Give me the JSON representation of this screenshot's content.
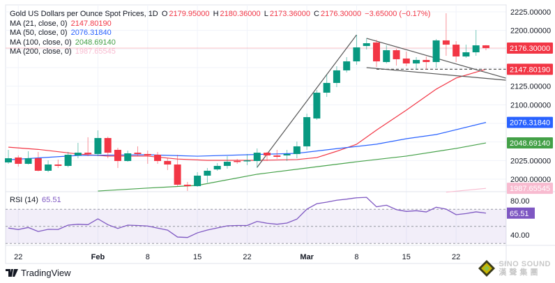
{
  "header": {
    "symbol": "Gold US Dollars per Ounce Spot Prices, 1D",
    "o_label": "O",
    "o": "2179.95000",
    "h_label": "H",
    "h": "2180.36000",
    "l_label": "L",
    "l": "2173.36000",
    "c_label": "C",
    "c": "2176.30000",
    "change": "−3.65000 (−0.17%)"
  },
  "indicators": [
    {
      "label": "MA (21, close, 0)",
      "value": "2147.80190",
      "color": "#f23645"
    },
    {
      "label": "MA (50, close, 0)",
      "value": "2076.31840",
      "color": "#2962ff"
    },
    {
      "label": "MA (100, close, 0)",
      "value": "2048.69140",
      "color": "#43a047"
    },
    {
      "label": "MA (200, close, 0)",
      "value": "1987.65545",
      "color": "#f8bbd0"
    }
  ],
  "rsi": {
    "label": "RSI (14)",
    "value": "65.51",
    "color": "#7e57c2"
  },
  "colors": {
    "up": "#089981",
    "down": "#f23645",
    "grid": "#f0f3fa",
    "trendline": "#555555"
  },
  "footer": {
    "brand": "TradingView"
  },
  "watermark": {
    "line1": "SINO SOUND",
    "line2": "漢 聲 集 團"
  },
  "chart_data": {
    "type": "candlestick",
    "title": "Gold US Dollars per Ounce Spot Prices, 1D",
    "ylim": [
      1980,
      2230
    ],
    "y_ticks": [
      "2225.00000",
      "2200.00000",
      "2125.00000",
      "2100.00000",
      "2025.00000",
      "2000.00000"
    ],
    "y_tick_values": [
      2225,
      2200,
      2125,
      2100,
      2025,
      2000
    ],
    "x_ticks": [
      {
        "text": "22",
        "date": "Jan 22",
        "bold": false
      },
      {
        "text": "Feb",
        "date": "Feb 1",
        "bold": true
      },
      {
        "text": "8",
        "date": "Feb 8",
        "bold": false
      },
      {
        "text": "15",
        "date": "Feb 15",
        "bold": false
      },
      {
        "text": "22",
        "date": "Feb 22",
        "bold": false
      },
      {
        "text": "Mar",
        "date": "Mar 1",
        "bold": true
      },
      {
        "text": "8",
        "date": "Mar 8",
        "bold": false
      },
      {
        "text": "15",
        "date": "Mar 15",
        "bold": false
      },
      {
        "text": "22",
        "date": "Mar 22",
        "bold": false
      }
    ],
    "grid": true,
    "candles_columns": [
      "date",
      "open",
      "high",
      "low",
      "close"
    ],
    "candles": [
      [
        "Jan 19",
        2022.5,
        2039.4,
        2020.6,
        2028.1
      ],
      [
        "Jan 22",
        2029.1,
        2031.9,
        2016.9,
        2020.6
      ],
      [
        "Jan 23",
        2020.6,
        2037.5,
        2019.7,
        2028.1
      ],
      [
        "Jan 24",
        2028.1,
        2036.6,
        2010.5,
        2011.3
      ],
      [
        "Jan 25",
        2011.3,
        2025.3,
        2009.4,
        2019.7
      ],
      [
        "Jan 26",
        2019.7,
        2026.3,
        2015.0,
        2017.8
      ],
      [
        "Jan 29",
        2017.8,
        2036.6,
        2015.9,
        2032.8
      ],
      [
        "Jan 30",
        2031.9,
        2048.8,
        2028.1,
        2035.6
      ],
      [
        "Jan 31",
        2035.6,
        2056.3,
        2030.9,
        2033.8
      ],
      [
        "Feb 1",
        2033.8,
        2065.6,
        2030.9,
        2055.3
      ],
      [
        "Feb 2",
        2055.3,
        2057.2,
        2028.1,
        2035.6
      ],
      [
        "Feb 5",
        2039.4,
        2042.2,
        2015.0,
        2024.4
      ],
      [
        "Feb 6",
        2024.4,
        2038.4,
        2023.4,
        2034.7
      ],
      [
        "Feb 7",
        2035.6,
        2044.1,
        2030.9,
        2033.8
      ],
      [
        "Feb 8",
        2033.8,
        2038.4,
        2020.6,
        2031.9
      ],
      [
        "Feb 9",
        2032.8,
        2036.6,
        2020.6,
        2024.4
      ],
      [
        "Feb 12",
        2024.4,
        2028.1,
        2012.2,
        2019.7
      ],
      [
        "Feb 13",
        2019.7,
        2032.8,
        1990.6,
        1992.5
      ],
      [
        "Feb 14",
        1992.5,
        1996.3,
        1984.1,
        1990.6
      ],
      [
        "Feb 15",
        1990.6,
        2009.4,
        1989.7,
        2004.7
      ],
      [
        "Feb 16",
        2004.7,
        2015.0,
        1995.3,
        2011.3
      ],
      [
        "Feb 19",
        2013.1,
        2021.6,
        2011.3,
        2017.8
      ],
      [
        "Feb 20",
        2017.8,
        2030.9,
        2014.1,
        2023.4
      ],
      [
        "Feb 21",
        2024.4,
        2027.2,
        2020.6,
        2023.4
      ],
      [
        "Feb 22",
        2024.4,
        2033.8,
        2018.8,
        2025.3
      ],
      [
        "Feb 23",
        2024.4,
        2041.3,
        2015.0,
        2035.6
      ],
      [
        "Feb 26",
        2035.6,
        2036.6,
        2024.4,
        2031.9
      ],
      [
        "Feb 27",
        2031.9,
        2039.4,
        2027.2,
        2030.0
      ],
      [
        "Feb 28",
        2031.9,
        2039.4,
        2024.4,
        2033.8
      ],
      [
        "Feb 29",
        2033.8,
        2050.6,
        2028.1,
        2044.1
      ],
      [
        "Mar 1",
        2044.1,
        2088.1,
        2039.4,
        2083.4
      ],
      [
        "Mar 4",
        2081.6,
        2120.0,
        2079.7,
        2116.3
      ],
      [
        "Mar 5",
        2116.3,
        2140.6,
        2110.6,
        2129.4
      ],
      [
        "Mar 6",
        2129.4,
        2151.9,
        2123.8,
        2146.3
      ],
      [
        "Mar 7",
        2146.3,
        2164.1,
        2143.4,
        2158.4
      ],
      [
        "Mar 8",
        2158.4,
        2194.1,
        2153.8,
        2177.2
      ],
      [
        "Mar 11",
        2179.1,
        2189.4,
        2174.4,
        2182.8
      ],
      [
        "Mar 12",
        2183.8,
        2187.5,
        2150.9,
        2158.4
      ],
      [
        "Mar 13",
        2157.5,
        2180.0,
        2155.6,
        2173.4
      ],
      [
        "Mar 14",
        2173.4,
        2175.3,
        2152.8,
        2161.3
      ],
      [
        "Mar 15",
        2162.2,
        2171.6,
        2151.9,
        2155.6
      ],
      [
        "Mar 18",
        2155.6,
        2164.1,
        2147.2,
        2160.3
      ],
      [
        "Mar 19",
        2160.3,
        2165.0,
        2147.2,
        2157.5
      ],
      [
        "Mar 20",
        2157.5,
        2188.4,
        2150.0,
        2186.6
      ],
      [
        "Mar 21",
        2186.6,
        2223.1,
        2165.9,
        2180.9
      ],
      [
        "Mar 22",
        2180.9,
        2185.6,
        2157.5,
        2165.0
      ],
      [
        "Mar 25",
        2165.0,
        2180.9,
        2163.1,
        2170.6
      ],
      [
        "Mar 26",
        2170.6,
        2200.6,
        2165.9,
        2179.95
      ],
      [
        "Mar 27",
        2179.95,
        2180.36,
        2173.36,
        2176.3
      ]
    ],
    "moving_averages": [
      {
        "name": "MA (21, close, 0)",
        "color": "#f23645",
        "last": "2147.80190",
        "points": [
          [
            "Jan 19",
            2043
          ],
          [
            "Jan 24",
            2040
          ],
          [
            "Jan 30",
            2033.8
          ],
          [
            "Feb 2",
            2031
          ],
          [
            "Feb 8",
            2031
          ],
          [
            "Feb 13",
            2027
          ],
          [
            "Feb 16",
            2025.3
          ],
          [
            "Feb 23",
            2025.3
          ],
          [
            "Feb 29",
            2026.3
          ],
          [
            "Mar 4",
            2029
          ],
          [
            "Mar 6",
            2037.5
          ],
          [
            "Mar 8",
            2046.9
          ],
          [
            "Mar 12",
            2066
          ],
          [
            "Mar 15",
            2092.8
          ],
          [
            "Mar 20",
            2121
          ],
          [
            "Mar 22",
            2136
          ],
          [
            "Mar 27",
            2147.8
          ]
        ]
      },
      {
        "name": "MA (50, close, 0)",
        "color": "#2962ff",
        "last": "2076.31840",
        "points": [
          [
            "Jan 19",
            2026
          ],
          [
            "Jan 30",
            2031.9
          ],
          [
            "Feb 8",
            2032.8
          ],
          [
            "Feb 15",
            2030.9
          ],
          [
            "Feb 22",
            2032.8
          ],
          [
            "Feb 29",
            2034.7
          ],
          [
            "Mar 6",
            2041
          ],
          [
            "Mar 12",
            2047
          ],
          [
            "Mar 15",
            2054.4
          ],
          [
            "Mar 20",
            2060
          ],
          [
            "Mar 27",
            2076.3
          ]
        ]
      },
      {
        "name": "MA (100, close, 0)",
        "color": "#43a047",
        "last": "2048.69140",
        "points": [
          [
            "Feb 1",
            1984
          ],
          [
            "Feb 8",
            1988
          ],
          [
            "Feb 15",
            1991.6
          ],
          [
            "Feb 23",
            2006.6
          ],
          [
            "Mar 1",
            2015
          ],
          [
            "Mar 8",
            2023.4
          ],
          [
            "Mar 15",
            2031
          ],
          [
            "Mar 22",
            2041.3
          ],
          [
            "Mar 27",
            2048.7
          ]
        ]
      },
      {
        "name": "MA (200, close, 0)",
        "color": "#f8bbd0",
        "last": "1987.65545",
        "points": [
          [
            "Mar 21",
            1982.5
          ],
          [
            "Mar 27",
            1987.65
          ]
        ]
      }
    ],
    "last_price": "2176.30000",
    "last_price_value": 2176.3,
    "drawings": [
      {
        "type": "trendline",
        "from": [
          "Feb 23",
          2015.9
        ],
        "to": [
          "Mar 8",
          2194.1
        ]
      },
      {
        "type": "trendline",
        "from": [
          "Mar 11",
          2189.4
        ],
        "to": [
          "Apr 1",
          2135.9
        ]
      },
      {
        "type": "trendline",
        "from": [
          "Mar 11",
          2150.0
        ],
        "to": [
          "Apr 1",
          2133.1
        ]
      },
      {
        "type": "dashed",
        "from": [
          "Mar 12",
          2147.8
        ],
        "to": [
          "Apr 1",
          2147.8
        ]
      }
    ],
    "rsi": {
      "label": "RSI (14)",
      "last": "65.51",
      "ylim": [
        20,
        90
      ],
      "y_ticks": [
        "80.00",
        "40.00"
      ],
      "y_tick_values": [
        80,
        40
      ],
      "bands": [
        70,
        50,
        30
      ],
      "values": [
        48,
        46.3,
        48.7,
        44,
        46.5,
        46.3,
        51.4,
        52.5,
        52,
        58.8,
        52,
        47.6,
        51.4,
        51,
        50.4,
        48,
        45.6,
        37.5,
        37,
        42.4,
        45.7,
        48.2,
        50.6,
        51,
        51,
        55.8,
        53.7,
        52.5,
        53.9,
        58.5,
        70.2,
        76.5,
        78.4,
        80.6,
        81.9,
        83.5,
        84,
        72.9,
        74.8,
        69.6,
        67.5,
        68.3,
        66.9,
        72.4,
        70.2,
        63.7,
        65,
        67,
        65.51
      ]
    }
  }
}
